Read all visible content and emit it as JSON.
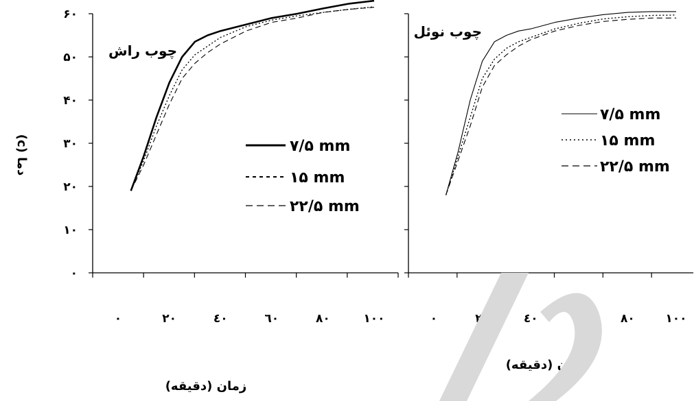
{
  "chart_data": [
    {
      "type": "line",
      "title": "چوب راش",
      "xlabel": "زمان (دقیقه)",
      "ylabel": "دما (c)",
      "x_tick_labels": [
        "۰",
        "۲۰",
        "٤۰",
        "٦۰",
        "۸۰",
        "۱۰۰"
      ],
      "y_tick_labels": [
        "۰",
        "۱۰",
        "۲۰",
        "۳۰",
        "۴۰",
        "۵۰",
        "۶۰"
      ],
      "xlim": [
        0,
        100
      ],
      "ylim": [
        0,
        60
      ],
      "legend_position": "right",
      "series": [
        {
          "name": "۷/۵ mm",
          "style": "solid-bold",
          "x": [
            5,
            10,
            15,
            20,
            25,
            30,
            35,
            40,
            50,
            60,
            70,
            80,
            90,
            100
          ],
          "y": [
            19,
            27,
            36,
            44,
            50,
            53.5,
            55,
            56,
            57.5,
            59,
            60,
            61.2,
            62.3,
            63
          ]
        },
        {
          "name": "۱۵ mm",
          "style": "dotted",
          "x": [
            5,
            10,
            15,
            20,
            25,
            30,
            35,
            40,
            50,
            60,
            70,
            80,
            90,
            100
          ],
          "y": [
            19,
            26,
            34,
            41,
            47,
            50.5,
            52.5,
            54.5,
            57,
            58.5,
            59.5,
            60.3,
            61,
            61.6
          ]
        },
        {
          "name": "۲۲/۵ mm",
          "style": "dashed",
          "x": [
            5,
            10,
            15,
            20,
            25,
            30,
            35,
            40,
            50,
            60,
            70,
            80,
            90,
            100
          ],
          "y": [
            19,
            25,
            32,
            39,
            45,
            48.5,
            51,
            53,
            56,
            58,
            59,
            60.3,
            61,
            61.5
          ]
        }
      ]
    },
    {
      "type": "line",
      "title": "چوب نوئل",
      "xlabel": "زمان (دقیقه)",
      "ylabel": "",
      "x_tick_labels": [
        "۰",
        "۲۰",
        "٤۰",
        "٦۰",
        "۸۰",
        "۱۰۰"
      ],
      "xlim": [
        0,
        100
      ],
      "ylim": [
        0,
        60
      ],
      "legend_position": "right",
      "series": [
        {
          "name": "۷/۵ mm",
          "style": "solid-thin",
          "x": [
            5,
            10,
            15,
            20,
            25,
            30,
            35,
            40,
            50,
            60,
            70,
            80,
            90,
            100
          ],
          "y": [
            18,
            28,
            40,
            49,
            53.5,
            55,
            56,
            56.5,
            58,
            59,
            59.8,
            60.3,
            60.5,
            60.5
          ]
        },
        {
          "name": "۱۵ mm",
          "style": "dotted",
          "x": [
            5,
            10,
            15,
            20,
            25,
            30,
            35,
            40,
            50,
            60,
            70,
            80,
            90,
            100
          ],
          "y": [
            18,
            27,
            36,
            45,
            49.5,
            52,
            53.5,
            54.5,
            56.5,
            57.8,
            58.8,
            59.3,
            59.6,
            59.7
          ]
        },
        {
          "name": "۲۲/۵ mm",
          "style": "dashed",
          "x": [
            5,
            10,
            15,
            20,
            25,
            30,
            35,
            40,
            50,
            60,
            70,
            80,
            90,
            100
          ],
          "y": [
            18,
            26,
            34,
            43,
            48,
            50.5,
            52.5,
            54,
            56,
            57.3,
            58.2,
            58.7,
            59,
            59
          ]
        }
      ]
    }
  ]
}
